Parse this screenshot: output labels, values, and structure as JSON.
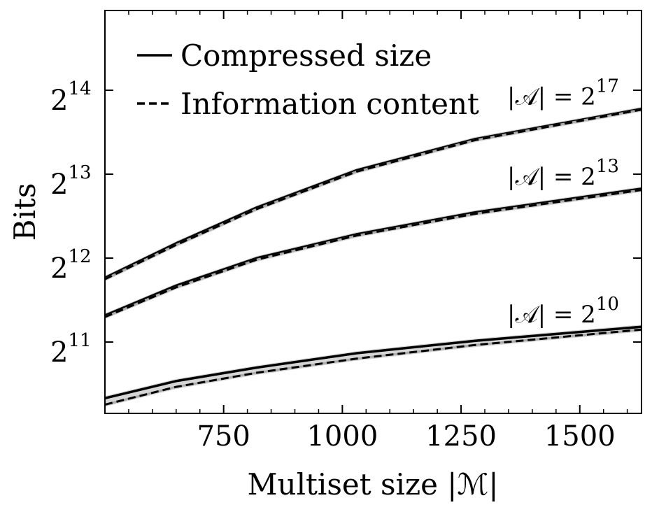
{
  "chart_data": {
    "type": "line",
    "xlabel": "Multiset size |ℳ|",
    "ylabel": "Bits",
    "xlim": [
      500,
      1630
    ],
    "ylim_log2": [
      10.15,
      14.95
    ],
    "y_scale": "log2",
    "x_ticks": [
      750,
      1000,
      1250,
      1500
    ],
    "y_ticks": [
      {
        "exp": 11,
        "base": "2",
        "sup": "11"
      },
      {
        "exp": 12,
        "base": "2",
        "sup": "12"
      },
      {
        "exp": 13,
        "base": "2",
        "sup": "13"
      },
      {
        "exp": 14,
        "base": "2",
        "sup": "14"
      }
    ],
    "grid": false,
    "legend": {
      "placement": "top-left",
      "entries": [
        {
          "label": "Compressed size",
          "style": "solid"
        },
        {
          "label": "Information content",
          "style": "dashed"
        }
      ]
    },
    "x": [
      500,
      650,
      820,
      1030,
      1280,
      1630
    ],
    "groups": [
      {
        "label_base": "|𝒜| = 2",
        "label_sup": "17",
        "compressed": [
          3481,
          4626,
          6224,
          8455,
          10946,
          14046
        ],
        "information": [
          3440,
          4566,
          6145,
          8362,
          10855,
          13951
        ]
      },
      {
        "label_base": "|𝒜| = 2",
        "label_sup": "13",
        "compressed": [
          2550,
          3263,
          4095,
          4986,
          5976,
          7263
        ],
        "information": [
          2518,
          3218,
          4045,
          4932,
          5908,
          7189
        ]
      },
      {
        "label_base": "|𝒜| = 2",
        "label_sup": "10",
        "compressed": [
          1288,
          1484,
          1659,
          1867,
          2070,
          2323
        ],
        "information": [
          1221,
          1414,
          1589,
          1786,
          1999,
          2270
        ]
      }
    ],
    "colors": {
      "line": "#000000",
      "band": "#cccccc",
      "inner": "#aaaaaa"
    }
  }
}
